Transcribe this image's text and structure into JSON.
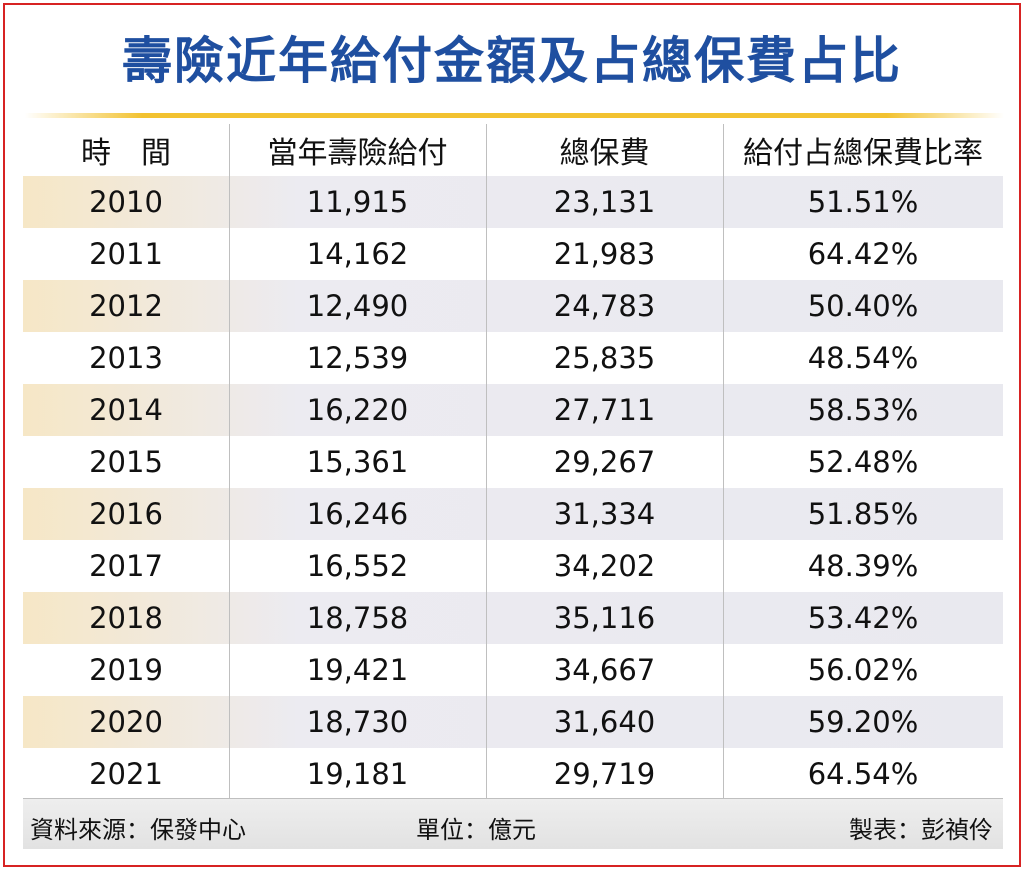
{
  "title": "壽險近年給付金額及占總保費占比",
  "chart_data": {
    "type": "table",
    "columns": [
      "時　間",
      "當年壽險給付",
      "總保費",
      "給付占總保費比率"
    ],
    "rows": [
      [
        "2010",
        "11,915",
        "23,131",
        "51.51%"
      ],
      [
        "2011",
        "14,162",
        "21,983",
        "64.42%"
      ],
      [
        "2012",
        "12,490",
        "24,783",
        "50.40%"
      ],
      [
        "2013",
        "12,539",
        "25,835",
        "48.54%"
      ],
      [
        "2014",
        "16,220",
        "27,711",
        "58.53%"
      ],
      [
        "2015",
        "15,361",
        "29,267",
        "52.48%"
      ],
      [
        "2016",
        "16,246",
        "31,334",
        "51.85%"
      ],
      [
        "2017",
        "16,552",
        "34,202",
        "48.39%"
      ],
      [
        "2018",
        "18,758",
        "35,116",
        "53.42%"
      ],
      [
        "2019",
        "19,421",
        "34,667",
        "56.02%"
      ],
      [
        "2020",
        "18,730",
        "31,640",
        "59.20%"
      ],
      [
        "2021",
        "19,181",
        "29,719",
        "64.54%"
      ]
    ]
  },
  "footer": {
    "source": "資料來源：保發中心",
    "unit": "單位：億元",
    "maker": "製表：彭禎伶"
  },
  "colors": {
    "title": "#1f4fa0",
    "frame": "#d72323",
    "rule": "#f2c230",
    "row_shade": "#ecebf1"
  }
}
